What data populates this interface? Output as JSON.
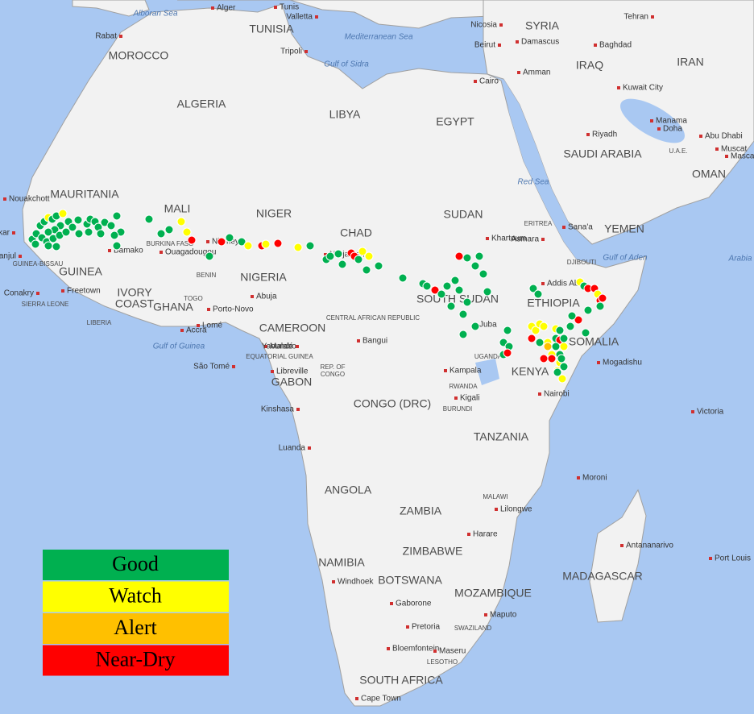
{
  "legend": [
    {
      "label": "Good",
      "color": "#00b050"
    },
    {
      "label": "Watch",
      "color": "#ffff00"
    },
    {
      "label": "Alert",
      "color": "#ffc000"
    },
    {
      "label": "Near-Dry",
      "color": "#ff0000"
    }
  ],
  "countries": [
    "MOROCCO",
    "ALGERIA",
    "TUNISIA",
    "LIBYA",
    "EGYPT",
    "SYRIA",
    "IRAQ",
    "IRAN",
    "SAUDI ARABIA",
    "OMAN",
    "YEMEN",
    "MAURITANIA",
    "MALI",
    "NIGER",
    "CHAD",
    "SUDAN",
    "ERITREA",
    "GUINEA",
    "IVORY",
    "COAST",
    "GHANA",
    "NIGERIA",
    "CAMEROON",
    "CENTRAL AFRICAN REPUBLIC",
    "SOUTH SUDAN",
    "ETHIOPIA",
    "SOMALIA",
    "KENYA",
    "UGANDA",
    "GABON",
    "CONGO (DRC)",
    "REP. OF",
    "CONGO",
    "RWANDA",
    "BURUNDI",
    "TANZANIA",
    "ANGOLA",
    "ZAMBIA",
    "MALAWI",
    "ZIMBABWE",
    "NAMIBIA",
    "BOTSWANA",
    "MOZAMBIQUE",
    "MADAGASCAR",
    "SOUTH AFRICA",
    "LESOTHO",
    "SWAZILAND",
    "U.A.E.",
    "DJIBOUTI",
    "LIBERIA",
    "SIERRA LEONE",
    "GUINEA-BISSAU",
    "BURKINA FASO",
    "BENIN",
    "TOGO",
    "EQUATORIAL GUINEA"
  ],
  "cities": [
    "Rabat",
    "Alger",
    "Tunis",
    "Valletta",
    "Tripoli",
    "Nicosia",
    "Damascus",
    "Beirut",
    "Amman",
    "Cairo",
    "Baghdad",
    "Tehran",
    "Kuwait City",
    "Manama",
    "Doha",
    "Abu Dhabi",
    "Muscat",
    "Riyadh",
    "Sana'a",
    "Asmara",
    "Khartoum",
    "Addis Ab",
    "Mogadishu",
    "Nairobi",
    "Kampala",
    "Kigali",
    "Juba",
    "Bangui",
    "N'Djamena",
    "Niamey",
    "Bamako",
    "Ouagadougou",
    "Dakar",
    "Banjul",
    "Conakry",
    "Freetown",
    "Accra",
    "Lomé",
    "Porto-Novo",
    "Abuja",
    "Malabo",
    "Yaoundé",
    "São Tomé",
    "Libreville",
    "Kinshasa",
    "Luanda",
    "Lilongwe",
    "Harare",
    "Maputo",
    "Gaborone",
    "Pretoria",
    "Windhoek",
    "Bloemfontein",
    "Maseru",
    "Cape Town",
    "Antananarivo",
    "Moroni",
    "Victoria",
    "Port Louis",
    "Nouakchott",
    "Mascat"
  ],
  "waters": [
    "Alboran Sea",
    "Mediterranean Sea",
    "Gulf of Sidra",
    "Red Sea",
    "Gulf of Aden",
    "Gulf of Guinea",
    "Arabia"
  ]
}
